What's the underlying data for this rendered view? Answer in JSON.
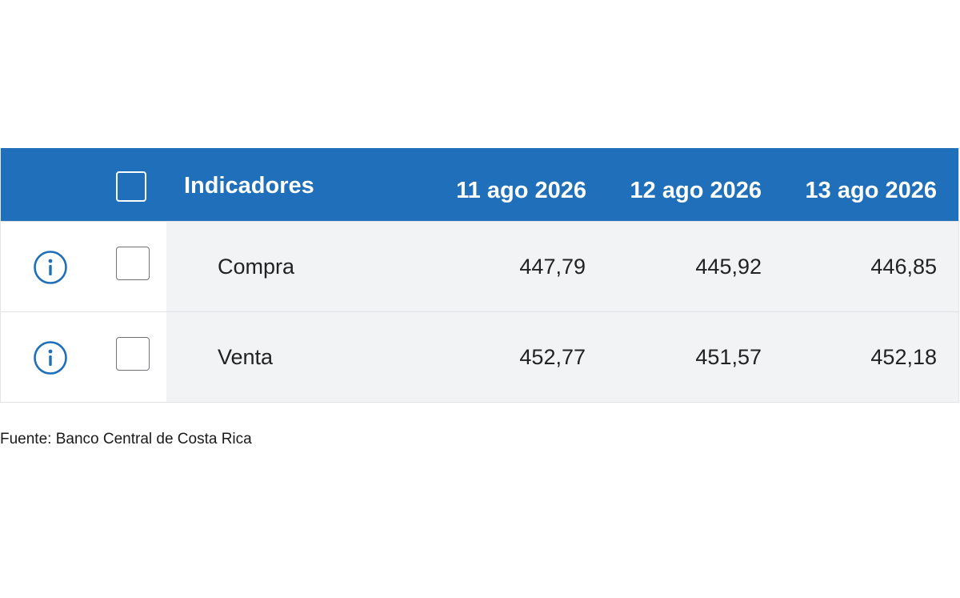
{
  "table": {
    "header": {
      "title": "Indicadores",
      "dates": [
        "11 ago 2026",
        "12 ago 2026",
        "13 ago 2026"
      ]
    },
    "rows": [
      {
        "label": "Compra",
        "values": [
          "447,79",
          "445,92",
          "446,85"
        ]
      },
      {
        "label": "Venta",
        "values": [
          "452,77",
          "451,57",
          "452,18"
        ]
      }
    ]
  },
  "footer": {
    "source": "Fuente: Banco Central de Costa Rica"
  },
  "colors": {
    "header_bg": "#1f6fba",
    "icon": "#1f6fba",
    "row_bg": "#f2f3f5"
  },
  "icons": {
    "row_info": "info-circle-icon"
  }
}
